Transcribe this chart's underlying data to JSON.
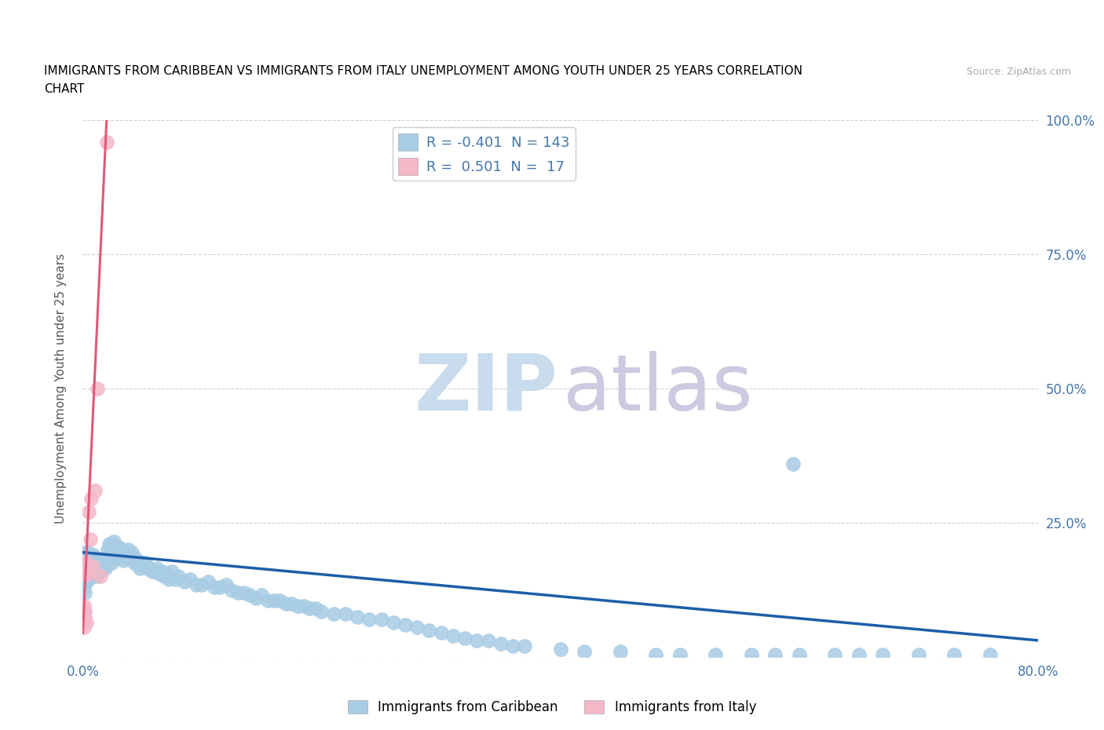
{
  "title_line1": "IMMIGRANTS FROM CARIBBEAN VS IMMIGRANTS FROM ITALY UNEMPLOYMENT AMONG YOUTH UNDER 25 YEARS CORRELATION",
  "title_line2": "CHART",
  "source": "Source: ZipAtlas.com",
  "ylabel": "Unemployment Among Youth under 25 years",
  "xlim": [
    0,
    0.8
  ],
  "ylim": [
    0,
    1.0
  ],
  "blue_R": -0.401,
  "blue_N": 143,
  "pink_R": 0.501,
  "pink_N": 17,
  "blue_color": "#a8cce4",
  "pink_color": "#f4b8c8",
  "blue_trend_color": "#1a5fa8",
  "pink_trend_color": "#e05878",
  "gray_trend_color": "#c8c8c8",
  "watermark_color_zip": "#c8dced",
  "watermark_color_atlas": "#cec8e0",
  "legend_label_blue": "Immigrants from Caribbean",
  "legend_label_pink": "Immigrants from Italy",
  "blue_trend_intercept": 0.195,
  "blue_trend_slope": -0.205,
  "pink_trend_intercept": 0.045,
  "pink_trend_slope": 48.0,
  "background_color": "#ffffff",
  "grid_color": "#cccccc",
  "title_color": "#000000",
  "tick_label_color": "#4477aa",
  "blue_scatter_x": [
    0.001,
    0.001,
    0.001,
    0.001,
    0.002,
    0.002,
    0.002,
    0.002,
    0.002,
    0.003,
    0.003,
    0.003,
    0.003,
    0.004,
    0.004,
    0.004,
    0.005,
    0.005,
    0.005,
    0.006,
    0.006,
    0.007,
    0.007,
    0.008,
    0.008,
    0.009,
    0.009,
    0.01,
    0.01,
    0.011,
    0.011,
    0.012,
    0.012,
    0.013,
    0.014,
    0.015,
    0.015,
    0.016,
    0.017,
    0.018,
    0.018,
    0.019,
    0.02,
    0.021,
    0.022,
    0.023,
    0.024,
    0.025,
    0.026,
    0.027,
    0.028,
    0.029,
    0.03,
    0.031,
    0.032,
    0.033,
    0.034,
    0.035,
    0.036,
    0.037,
    0.038,
    0.039,
    0.04,
    0.041,
    0.042,
    0.043,
    0.044,
    0.045,
    0.046,
    0.047,
    0.048,
    0.049,
    0.05,
    0.052,
    0.054,
    0.056,
    0.058,
    0.06,
    0.062,
    0.064,
    0.066,
    0.068,
    0.07,
    0.072,
    0.075,
    0.078,
    0.08,
    0.085,
    0.09,
    0.095,
    0.1,
    0.105,
    0.11,
    0.115,
    0.12,
    0.125,
    0.13,
    0.135,
    0.14,
    0.145,
    0.15,
    0.155,
    0.16,
    0.165,
    0.17,
    0.175,
    0.18,
    0.185,
    0.19,
    0.195,
    0.2,
    0.21,
    0.22,
    0.23,
    0.24,
    0.25,
    0.26,
    0.27,
    0.28,
    0.29,
    0.3,
    0.31,
    0.32,
    0.33,
    0.34,
    0.35,
    0.36,
    0.37,
    0.4,
    0.42,
    0.45,
    0.48,
    0.5,
    0.53,
    0.56,
    0.58,
    0.6,
    0.63,
    0.65,
    0.67,
    0.7,
    0.73,
    0.76,
    0.595
  ],
  "blue_scatter_y": [
    0.155,
    0.13,
    0.17,
    0.185,
    0.145,
    0.16,
    0.12,
    0.175,
    0.195,
    0.14,
    0.165,
    0.155,
    0.185,
    0.15,
    0.17,
    0.195,
    0.145,
    0.16,
    0.18,
    0.15,
    0.175,
    0.165,
    0.185,
    0.155,
    0.175,
    0.16,
    0.19,
    0.155,
    0.175,
    0.165,
    0.185,
    0.15,
    0.17,
    0.175,
    0.165,
    0.16,
    0.18,
    0.165,
    0.175,
    0.17,
    0.185,
    0.165,
    0.175,
    0.2,
    0.21,
    0.185,
    0.175,
    0.21,
    0.215,
    0.195,
    0.2,
    0.185,
    0.205,
    0.195,
    0.2,
    0.19,
    0.18,
    0.195,
    0.19,
    0.185,
    0.2,
    0.195,
    0.185,
    0.195,
    0.185,
    0.175,
    0.185,
    0.175,
    0.18,
    0.175,
    0.165,
    0.17,
    0.175,
    0.175,
    0.165,
    0.165,
    0.16,
    0.16,
    0.165,
    0.155,
    0.16,
    0.15,
    0.155,
    0.145,
    0.16,
    0.145,
    0.15,
    0.14,
    0.145,
    0.135,
    0.135,
    0.14,
    0.13,
    0.13,
    0.135,
    0.125,
    0.12,
    0.12,
    0.115,
    0.11,
    0.115,
    0.105,
    0.105,
    0.105,
    0.1,
    0.1,
    0.095,
    0.095,
    0.09,
    0.09,
    0.085,
    0.08,
    0.08,
    0.075,
    0.07,
    0.07,
    0.065,
    0.06,
    0.055,
    0.05,
    0.045,
    0.04,
    0.035,
    0.03,
    0.03,
    0.025,
    0.02,
    0.02,
    0.015,
    0.01,
    0.01,
    0.005,
    0.005,
    0.005,
    0.005,
    0.005,
    0.005,
    0.005,
    0.005,
    0.005,
    0.005,
    0.005,
    0.005,
    0.36
  ],
  "pink_scatter_x": [
    0.001,
    0.001,
    0.001,
    0.002,
    0.002,
    0.002,
    0.003,
    0.003,
    0.004,
    0.005,
    0.006,
    0.007,
    0.008,
    0.01,
    0.012,
    0.015,
    0.02
  ],
  "pink_scatter_y": [
    0.08,
    0.095,
    0.055,
    0.075,
    0.085,
    0.155,
    0.065,
    0.175,
    0.155,
    0.27,
    0.22,
    0.295,
    0.17,
    0.31,
    0.5,
    0.15,
    0.96
  ]
}
